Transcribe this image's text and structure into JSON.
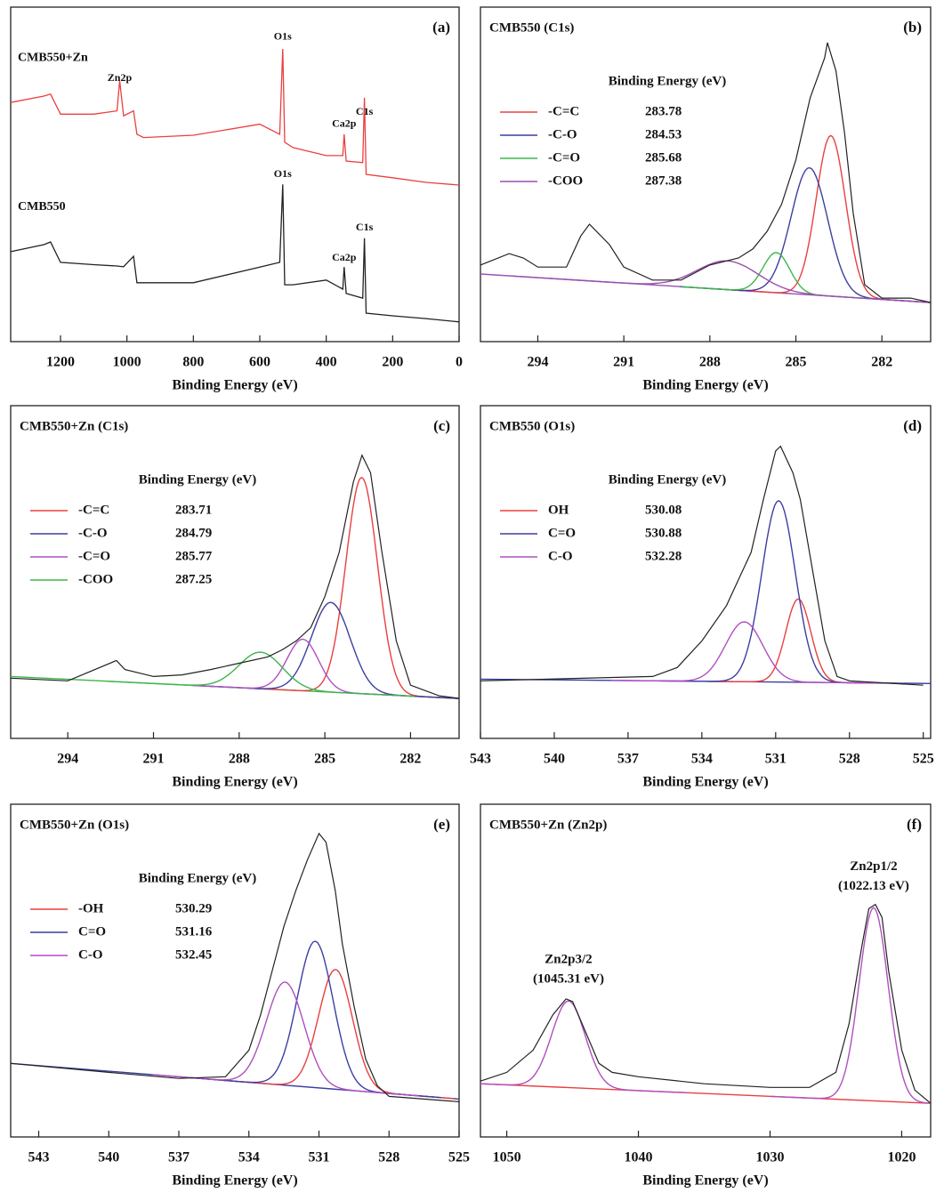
{
  "chart_data": [
    {
      "type": "line",
      "label": "(a)",
      "xlabel": "Binding Energy (eV)",
      "xlim": [
        1350,
        0
      ],
      "xticks": [
        1200,
        1000,
        800,
        600,
        400,
        200,
        0
      ],
      "ylim": [
        0,
        100
      ],
      "x": [
        1350,
        1250,
        1230,
        1200,
        1100,
        1030,
        1022,
        1010,
        980,
        970,
        950,
        800,
        600,
        540,
        531,
        525,
        500,
        400,
        350,
        346,
        340,
        290,
        285,
        280,
        200,
        100,
        0
      ],
      "series": [
        {
          "name": "CMB550+Zn",
          "color": "#e8403f",
          "values": [
            71.5,
            73.4,
            74,
            68,
            68,
            69,
            78,
            67.5,
            69,
            62,
            61,
            61.7,
            65,
            62,
            87.5,
            59.6,
            58,
            55.6,
            55.6,
            62,
            54,
            53.5,
            72.9,
            50,
            49,
            47.6,
            46.8
          ]
        },
        {
          "name": "CMB550",
          "color": "#222222",
          "values": [
            26.9,
            29,
            29.8,
            23.7,
            23,
            22.6,
            22.5,
            22.4,
            25.5,
            17.6,
            17.6,
            17.6,
            22.3,
            23.7,
            47,
            17,
            17,
            18.4,
            15.7,
            22.3,
            14.4,
            13,
            30.9,
            8.5,
            7.7,
            6.9,
            5.9
          ]
        }
      ],
      "annotations": [
        {
          "text": "O1s",
          "x": 531,
          "y": 91
        },
        {
          "text": "Zn2p",
          "x": 1022,
          "y": 78.7
        },
        {
          "text": "Ca2p",
          "x": 346,
          "y": 65
        },
        {
          "text": "C1s",
          "x": 285,
          "y": 68.6
        },
        {
          "text": "O1s",
          "x": 531,
          "y": 50
        },
        {
          "text": "Ca2p",
          "x": 346,
          "y": 25
        },
        {
          "text": "C1s",
          "x": 285,
          "y": 34
        }
      ]
    },
    {
      "type": "xps",
      "title": "CMB550 (C1s)",
      "label": "(b)",
      "xlabel": "Binding Energy (eV)",
      "xlim": [
        296,
        280.3
      ],
      "xticks": [
        294,
        291,
        288,
        285,
        282
      ],
      "ylim": [
        0,
        100
      ],
      "legend_title": "Binding Energy (eV)",
      "spectrum": {
        "color": "#222222",
        "x": [
          296,
          295,
          294.5,
          294,
          293,
          292.5,
          292.2,
          291.5,
          291,
          290,
          289,
          288,
          287,
          286.5,
          286,
          285.5,
          285,
          284.5,
          284,
          283.9,
          283.6,
          283.3,
          283,
          282.6,
          282,
          281,
          280.3
        ],
        "values": [
          22.9,
          26.3,
          25,
          22.3,
          22.3,
          31.6,
          35.1,
          29,
          22.3,
          18.4,
          18.4,
          22.9,
          25,
          27.7,
          33,
          41,
          54.3,
          72.9,
          84.8,
          89.4,
          80.9,
          62.2,
          38.3,
          17,
          13,
          13,
          11.7
        ]
      },
      "background": {
        "color": "#9b4fb0",
        "x": [
          296,
          280.3
        ],
        "values": [
          20.2,
          11.7
        ]
      },
      "series": [
        {
          "name": "-C=C",
          "color": "#e8403f",
          "center": 283.78,
          "height": 48,
          "fwhm": 1.2
        },
        {
          "name": "-C-O",
          "color": "#3b3fa0",
          "center": 284.53,
          "height": 38,
          "fwhm": 1.5
        },
        {
          "name": "-C=O",
          "color": "#3cb54a",
          "center": 285.68,
          "height": 12,
          "fwhm": 1.1
        },
        {
          "name": "-COO",
          "color": "#9b4fb0",
          "center": 287.38,
          "height": 8.6,
          "fwhm": 2.5
        }
      ]
    },
    {
      "type": "xps",
      "title": "CMB550+Zn (C1s)",
      "label": "(c)",
      "xlabel": "Binding Energy (eV)",
      "xlim": [
        296,
        280.3
      ],
      "xticks": [
        294,
        291,
        288,
        285,
        282
      ],
      "ylim": [
        0,
        100
      ],
      "legend_title": "Binding Energy (eV)",
      "spectrum": {
        "color": "#222222",
        "x": [
          296,
          294,
          292.3,
          292,
          291,
          290,
          289,
          288,
          287,
          286.5,
          286,
          285.5,
          285,
          284.5,
          284,
          283.7,
          283.4,
          283,
          282.5,
          282,
          281,
          280.3
        ],
        "values": [
          18.1,
          17.3,
          23.4,
          20.7,
          18.6,
          19.1,
          20.7,
          22.6,
          24.5,
          26.6,
          29.3,
          33.2,
          42.6,
          55.9,
          77.1,
          85.1,
          79.8,
          55.9,
          29.3,
          16,
          12.8,
          12
        ]
      },
      "background": {
        "color": "#3cb54a",
        "x": [
          296,
          280.3
        ],
        "values": [
          18.6,
          12
        ]
      },
      "series": [
        {
          "name": "-C=C",
          "color": "#e8403f",
          "center": 283.71,
          "height": 65,
          "fwhm": 1.3
        },
        {
          "name": "-C-O",
          "color": "#3b3fa0",
          "center": 284.79,
          "height": 27,
          "fwhm": 1.6
        },
        {
          "name": "-C=O",
          "color": "#b04fc0",
          "center": 285.77,
          "height": 15.5,
          "fwhm": 1.3
        },
        {
          "name": "-COO",
          "color": "#3cb54a",
          "center": 287.25,
          "height": 11,
          "fwhm": 1.8
        }
      ]
    },
    {
      "type": "xps",
      "title": "CMB550 (O1s)",
      "label": "(d)",
      "xlabel": "Binding Energy (eV)",
      "xlim": [
        543,
        524.7
      ],
      "xticks": [
        543,
        540,
        537,
        534,
        531,
        528,
        525
      ],
      "ylim": [
        0,
        100
      ],
      "legend_title": "Binding Energy (eV)",
      "spectrum": {
        "color": "#222222",
        "x": [
          543,
          536,
          535,
          534,
          533,
          532.5,
          532,
          531.5,
          531,
          530.8,
          530.3,
          530,
          529.5,
          529,
          528.5,
          528,
          525
        ],
        "values": [
          17.3,
          18.6,
          21.3,
          29.3,
          39.9,
          47.9,
          55.9,
          71.8,
          86.4,
          87.8,
          79.8,
          71.8,
          50.5,
          29.3,
          18.6,
          17.3,
          16
        ]
      },
      "background": {
        "color": "#3b3fa0",
        "x": [
          543,
          524.7
        ],
        "values": [
          17.8,
          16.5
        ]
      },
      "series": [
        {
          "name": "OH",
          "color": "#e8403f",
          "center": 530.08,
          "height": 25,
          "fwhm": 1.2
        },
        {
          "name": "C=O",
          "color": "#3b3fa0",
          "center": 530.88,
          "height": 54.5,
          "fwhm": 1.6
        },
        {
          "name": "C-O",
          "color": "#b04fc0",
          "center": 532.28,
          "height": 18,
          "fwhm": 1.8
        }
      ]
    },
    {
      "type": "xps",
      "title": "CMB550+Zn (O1s)",
      "label": "(e)",
      "xlabel": "Binding Energy (eV)",
      "xlim": [
        544.2,
        525
      ],
      "xticks": [
        543,
        540,
        537,
        534,
        531,
        528,
        525
      ],
      "ylim": [
        0,
        100
      ],
      "legend_title": "Binding Energy (eV)",
      "spectrum": {
        "color": "#222222",
        "x": [
          544.2,
          540,
          537,
          535,
          534,
          533.5,
          533,
          532.5,
          532,
          531.5,
          531,
          530.7,
          530.3,
          530,
          529.5,
          529,
          528.5,
          528,
          525
        ],
        "values": [
          22.1,
          19.4,
          17.6,
          18.1,
          26.1,
          36.7,
          50,
          63.3,
          73.9,
          83.2,
          91.2,
          88.6,
          73.9,
          58,
          39.4,
          23.4,
          15.4,
          12.2,
          10.6
        ]
      },
      "background": {
        "color": "#3b3fa0",
        "x": [
          544.2,
          525
        ],
        "values": [
          22.1,
          11.4
        ]
      },
      "series": [
        {
          "name": "-OH",
          "color": "#e8403f",
          "center": 530.29,
          "height": 36,
          "fwhm": 1.7
        },
        {
          "name": "C=O",
          "color": "#3b3fa0",
          "center": 531.16,
          "height": 44,
          "fwhm": 1.8
        },
        {
          "name": "C-O",
          "color": "#b04fc0",
          "center": 532.45,
          "height": 31,
          "fwhm": 1.9
        }
      ]
    },
    {
      "type": "xps",
      "title": "CMB550+Zn (Zn2p)",
      "label": "(f)",
      "xlabel": "Binding Energy (eV)",
      "xlim": [
        1052,
        1017.8
      ],
      "xticks": [
        1050,
        1040,
        1030,
        1020
      ],
      "ylim": [
        0,
        100
      ],
      "spectrum": {
        "color": "#222222",
        "x": [
          1052,
          1050,
          1048,
          1046.5,
          1045.5,
          1045,
          1044,
          1043,
          1042,
          1040,
          1035,
          1030,
          1027,
          1025,
          1024,
          1023,
          1022.5,
          1022,
          1021.5,
          1021,
          1020,
          1019,
          1017.8
        ],
        "values": [
          16.8,
          19.4,
          26.1,
          36.7,
          41.5,
          40.7,
          31.4,
          22.1,
          19.4,
          18.1,
          16,
          14.9,
          14.9,
          19.4,
          34,
          58,
          68.6,
          69.9,
          66,
          50,
          26.1,
          14.1,
          10.1
        ]
      },
      "background": {
        "color": "#e8403f",
        "x": [
          1052,
          1017.8
        ],
        "values": [
          16,
          10.1
        ]
      },
      "series": [
        {
          "name": "Zn2p3/2",
          "color": "#b04fc0",
          "center": 1045.31,
          "center_label": "(1045.31 eV)",
          "height": 26,
          "fwhm": 3.0
        },
        {
          "name": "Zn2p1/2",
          "color": "#b04fc0",
          "center": 1022.13,
          "center_label": "(1022.13 eV)",
          "height": 58,
          "fwhm": 2.6
        }
      ]
    }
  ]
}
